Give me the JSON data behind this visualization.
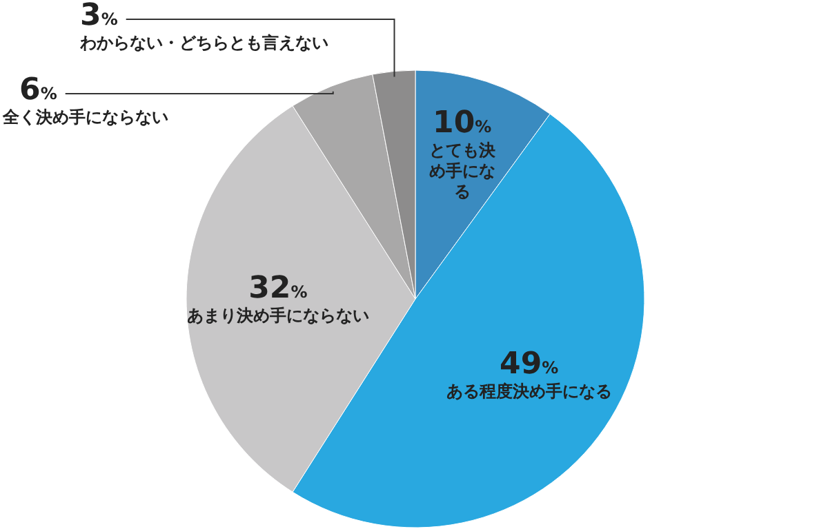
{
  "chart_data": {
    "type": "pie",
    "categories": [
      "とても決め手になる",
      "ある程度決め手になる",
      "あまり決め手にならない",
      "全く決め手にならない",
      "わからない・どちらとも言えない"
    ],
    "values": [
      10,
      49,
      32,
      6,
      3
    ],
    "colors": [
      "#3a8bc0",
      "#29a8e0",
      "#c8c7c8",
      "#a9a8a8",
      "#8d8c8c"
    ],
    "value_labels": [
      "10%",
      "49%",
      "32%",
      "6%",
      "3%"
    ]
  }
}
